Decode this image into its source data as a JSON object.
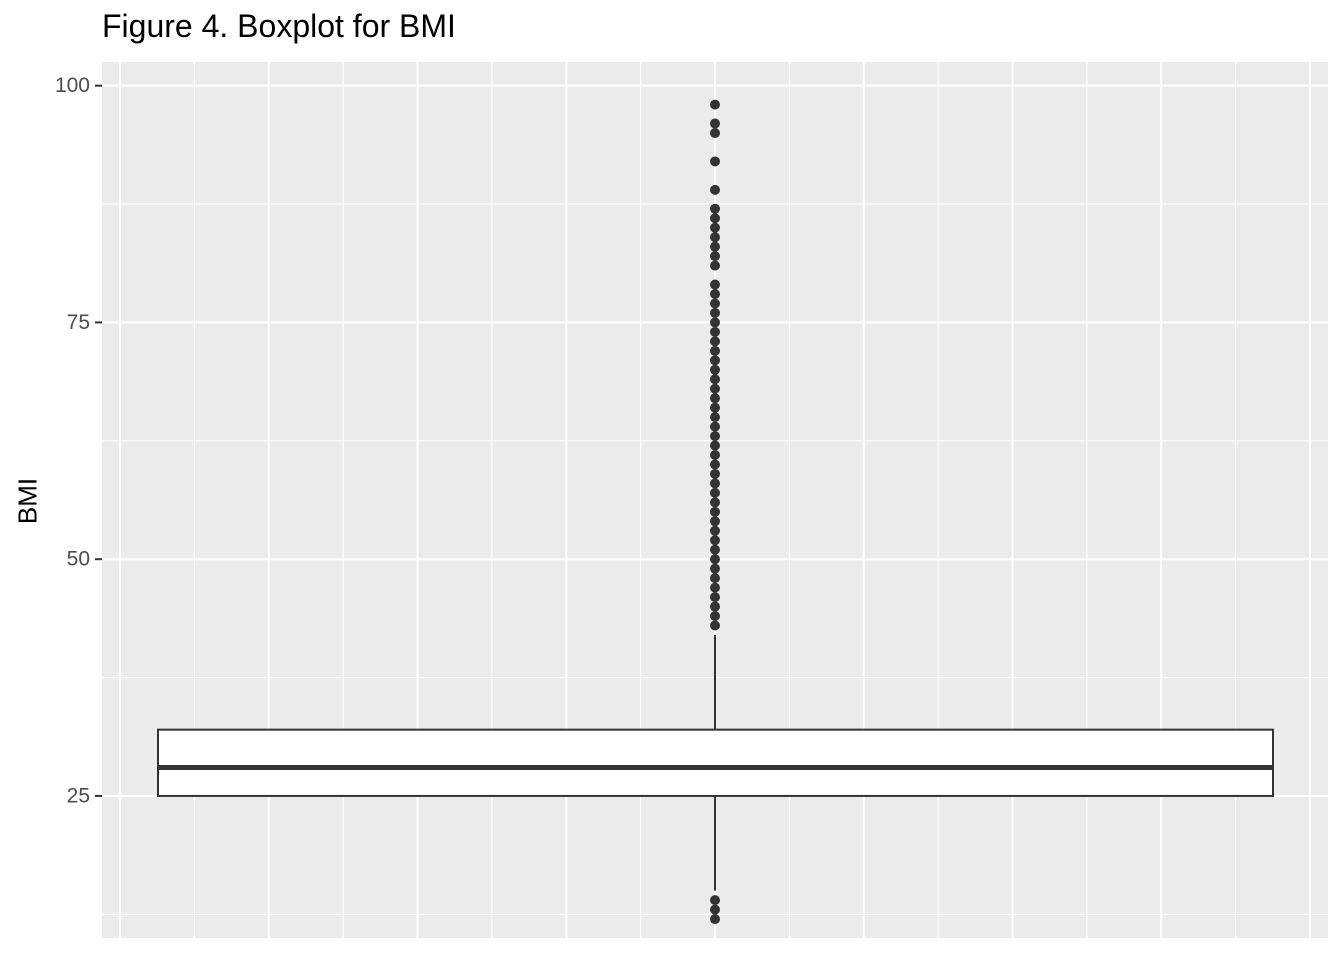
{
  "chart_data": {
    "type": "boxplot",
    "title": "Figure 4. Boxplot for BMI",
    "xlabel": "",
    "ylabel": "BMI",
    "ylim": [
      10,
      102.5
    ],
    "y_ticks": [
      25,
      50,
      75,
      100
    ],
    "y_tick_labels": [
      "25",
      "50",
      "75",
      "100"
    ],
    "grid": true,
    "box": {
      "lower_whisker": 15,
      "q1": 25,
      "median": 28,
      "q3": 32,
      "upper_whisker": 42
    },
    "outliers": [
      12,
      13,
      14,
      43,
      44,
      45,
      46,
      47,
      48,
      49,
      50,
      51,
      52,
      53,
      54,
      55,
      56,
      57,
      58,
      59,
      60,
      61,
      62,
      63,
      64,
      65,
      66,
      67,
      68,
      69,
      70,
      71,
      72,
      73,
      74,
      75,
      76,
      77,
      78,
      79,
      81,
      82,
      83,
      84,
      85,
      86,
      87,
      89,
      92,
      95,
      96,
      98
    ],
    "colors": {
      "panel_background": "#ebebeb",
      "grid": "#ffffff",
      "box_fill": "#ffffff",
      "line": "#333333",
      "point": "#333333"
    }
  }
}
